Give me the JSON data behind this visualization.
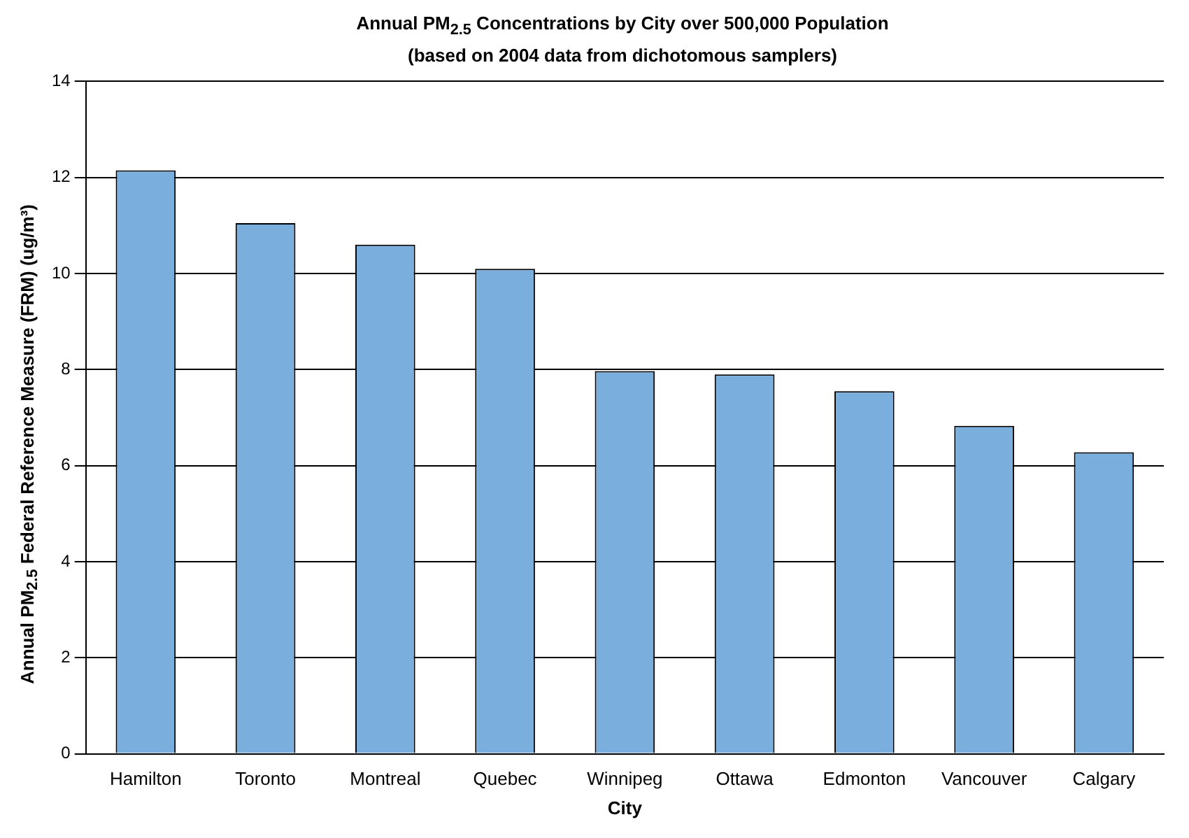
{
  "chart_data": {
    "type": "bar",
    "title": "Annual PM$_{2.5}$ Concentrations by City over 500,000 Population",
    "subtitle": "(based on 2004 data from dichotomous samplers)",
    "xlabel": "City",
    "ylabel": "Annual PM$_{2.5}$ Federal Reference Measure (FRM) (ug/m³)",
    "categories": [
      "Hamilton",
      "Toronto",
      "Montreal",
      "Quebec",
      "Winnipeg",
      "Ottawa",
      "Edmonton",
      "Vancouver",
      "Calgary"
    ],
    "values": [
      12.15,
      11.05,
      10.6,
      10.1,
      7.97,
      7.9,
      7.55,
      6.83,
      6.28
    ],
    "color": "#7aaedc",
    "ylim": [
      0,
      14
    ],
    "yticks": [
      0,
      2,
      4,
      6,
      8,
      10,
      12,
      14
    ],
    "grid": "y"
  }
}
